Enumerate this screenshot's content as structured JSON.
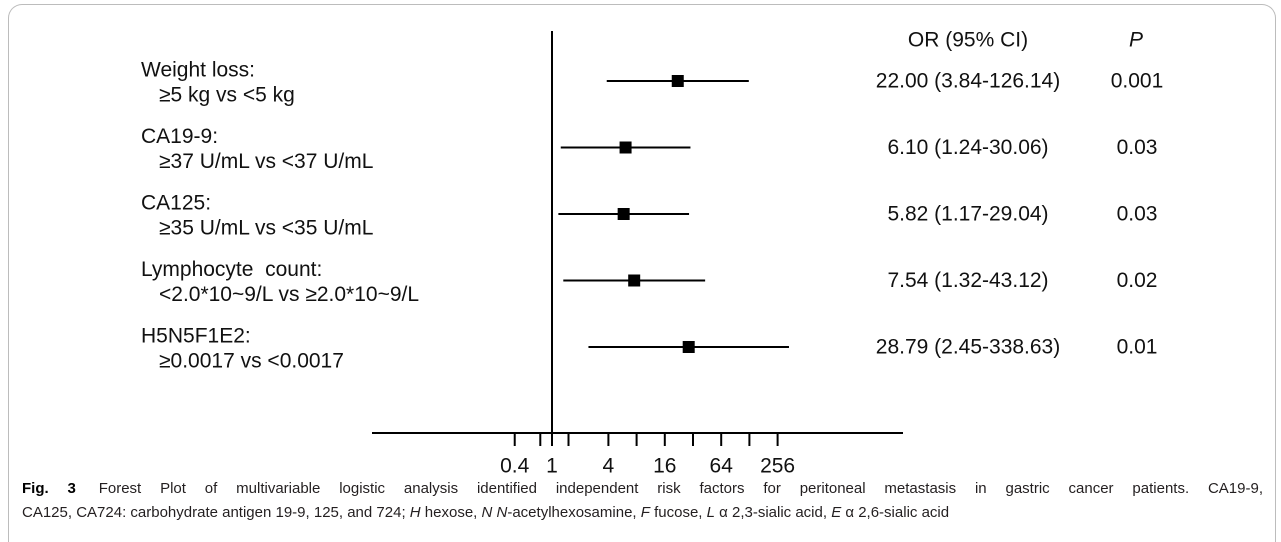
{
  "chart_data": {
    "type": "scatter",
    "x_scale": "log",
    "reference_line": 1,
    "grid": false,
    "header": {
      "estimate": "OR (95% CI)",
      "p": "P"
    },
    "rows": [
      {
        "label": "Weight loss:",
        "comparison": "≥5 kg vs <5 kg",
        "or": 22.0,
        "ci_low": 3.84,
        "ci_high": 126.14,
        "or_text": "22.00 (3.84-126.14)",
        "p": "0.001"
      },
      {
        "label": "CA19-9:",
        "comparison": "≥37 U/mL vs <37 U/mL",
        "or": 6.1,
        "ci_low": 1.24,
        "ci_high": 30.06,
        "or_text": "6.10 (1.24-30.06)",
        "p": "0.03"
      },
      {
        "label": "CA125:",
        "comparison": "≥35 U/mL vs <35 U/mL",
        "or": 5.82,
        "ci_low": 1.17,
        "ci_high": 29.04,
        "or_text": "5.82 (1.17-29.04)",
        "p": "0.03"
      },
      {
        "label": "Lymphocyte  count:",
        "comparison": "<2.0*10~9/L vs ≥2.0*10~9/L",
        "or": 7.54,
        "ci_low": 1.32,
        "ci_high": 43.12,
        "or_text": "7.54 (1.32-43.12)",
        "p": "0.02"
      },
      {
        "label": "H5N5F1E2:",
        "comparison": "≥0.0017 vs <0.0017",
        "or": 28.79,
        "ci_low": 2.45,
        "ci_high": 338.63,
        "or_text": "28.79 (2.45-338.63)",
        "p": "0.01"
      }
    ],
    "x_ticks": [
      {
        "value": 0.4,
        "label": "0.4"
      },
      {
        "value": 1,
        "label": "1"
      },
      {
        "value": 4,
        "label": "4"
      },
      {
        "value": 16,
        "label": "16"
      },
      {
        "value": 64,
        "label": "64"
      },
      {
        "value": 256,
        "label": "256"
      }
    ],
    "minor_ticks": [
      0.75,
      1.5,
      8,
      32,
      128
    ]
  },
  "caption": {
    "fig_label": "Fig. 3",
    "line1": "Forest Plot of multivariable logistic analysis identified independent risk factors for peritoneal metastasis in gastric cancer patients. CA19-9,",
    "line2": [
      "CA125, CA724: carbohydrate antigen 19-9, 125, and 724; ",
      "H",
      " hexose, ",
      "N N",
      "-acetylhexosamine, ",
      "F",
      " fucose, ",
      "L",
      " α 2,3-sialic acid, ",
      "E",
      " α 2,6-sialic acid"
    ]
  },
  "colors": {
    "marks": "#000000",
    "text": "#111111",
    "frame": "#bcbcbc"
  }
}
